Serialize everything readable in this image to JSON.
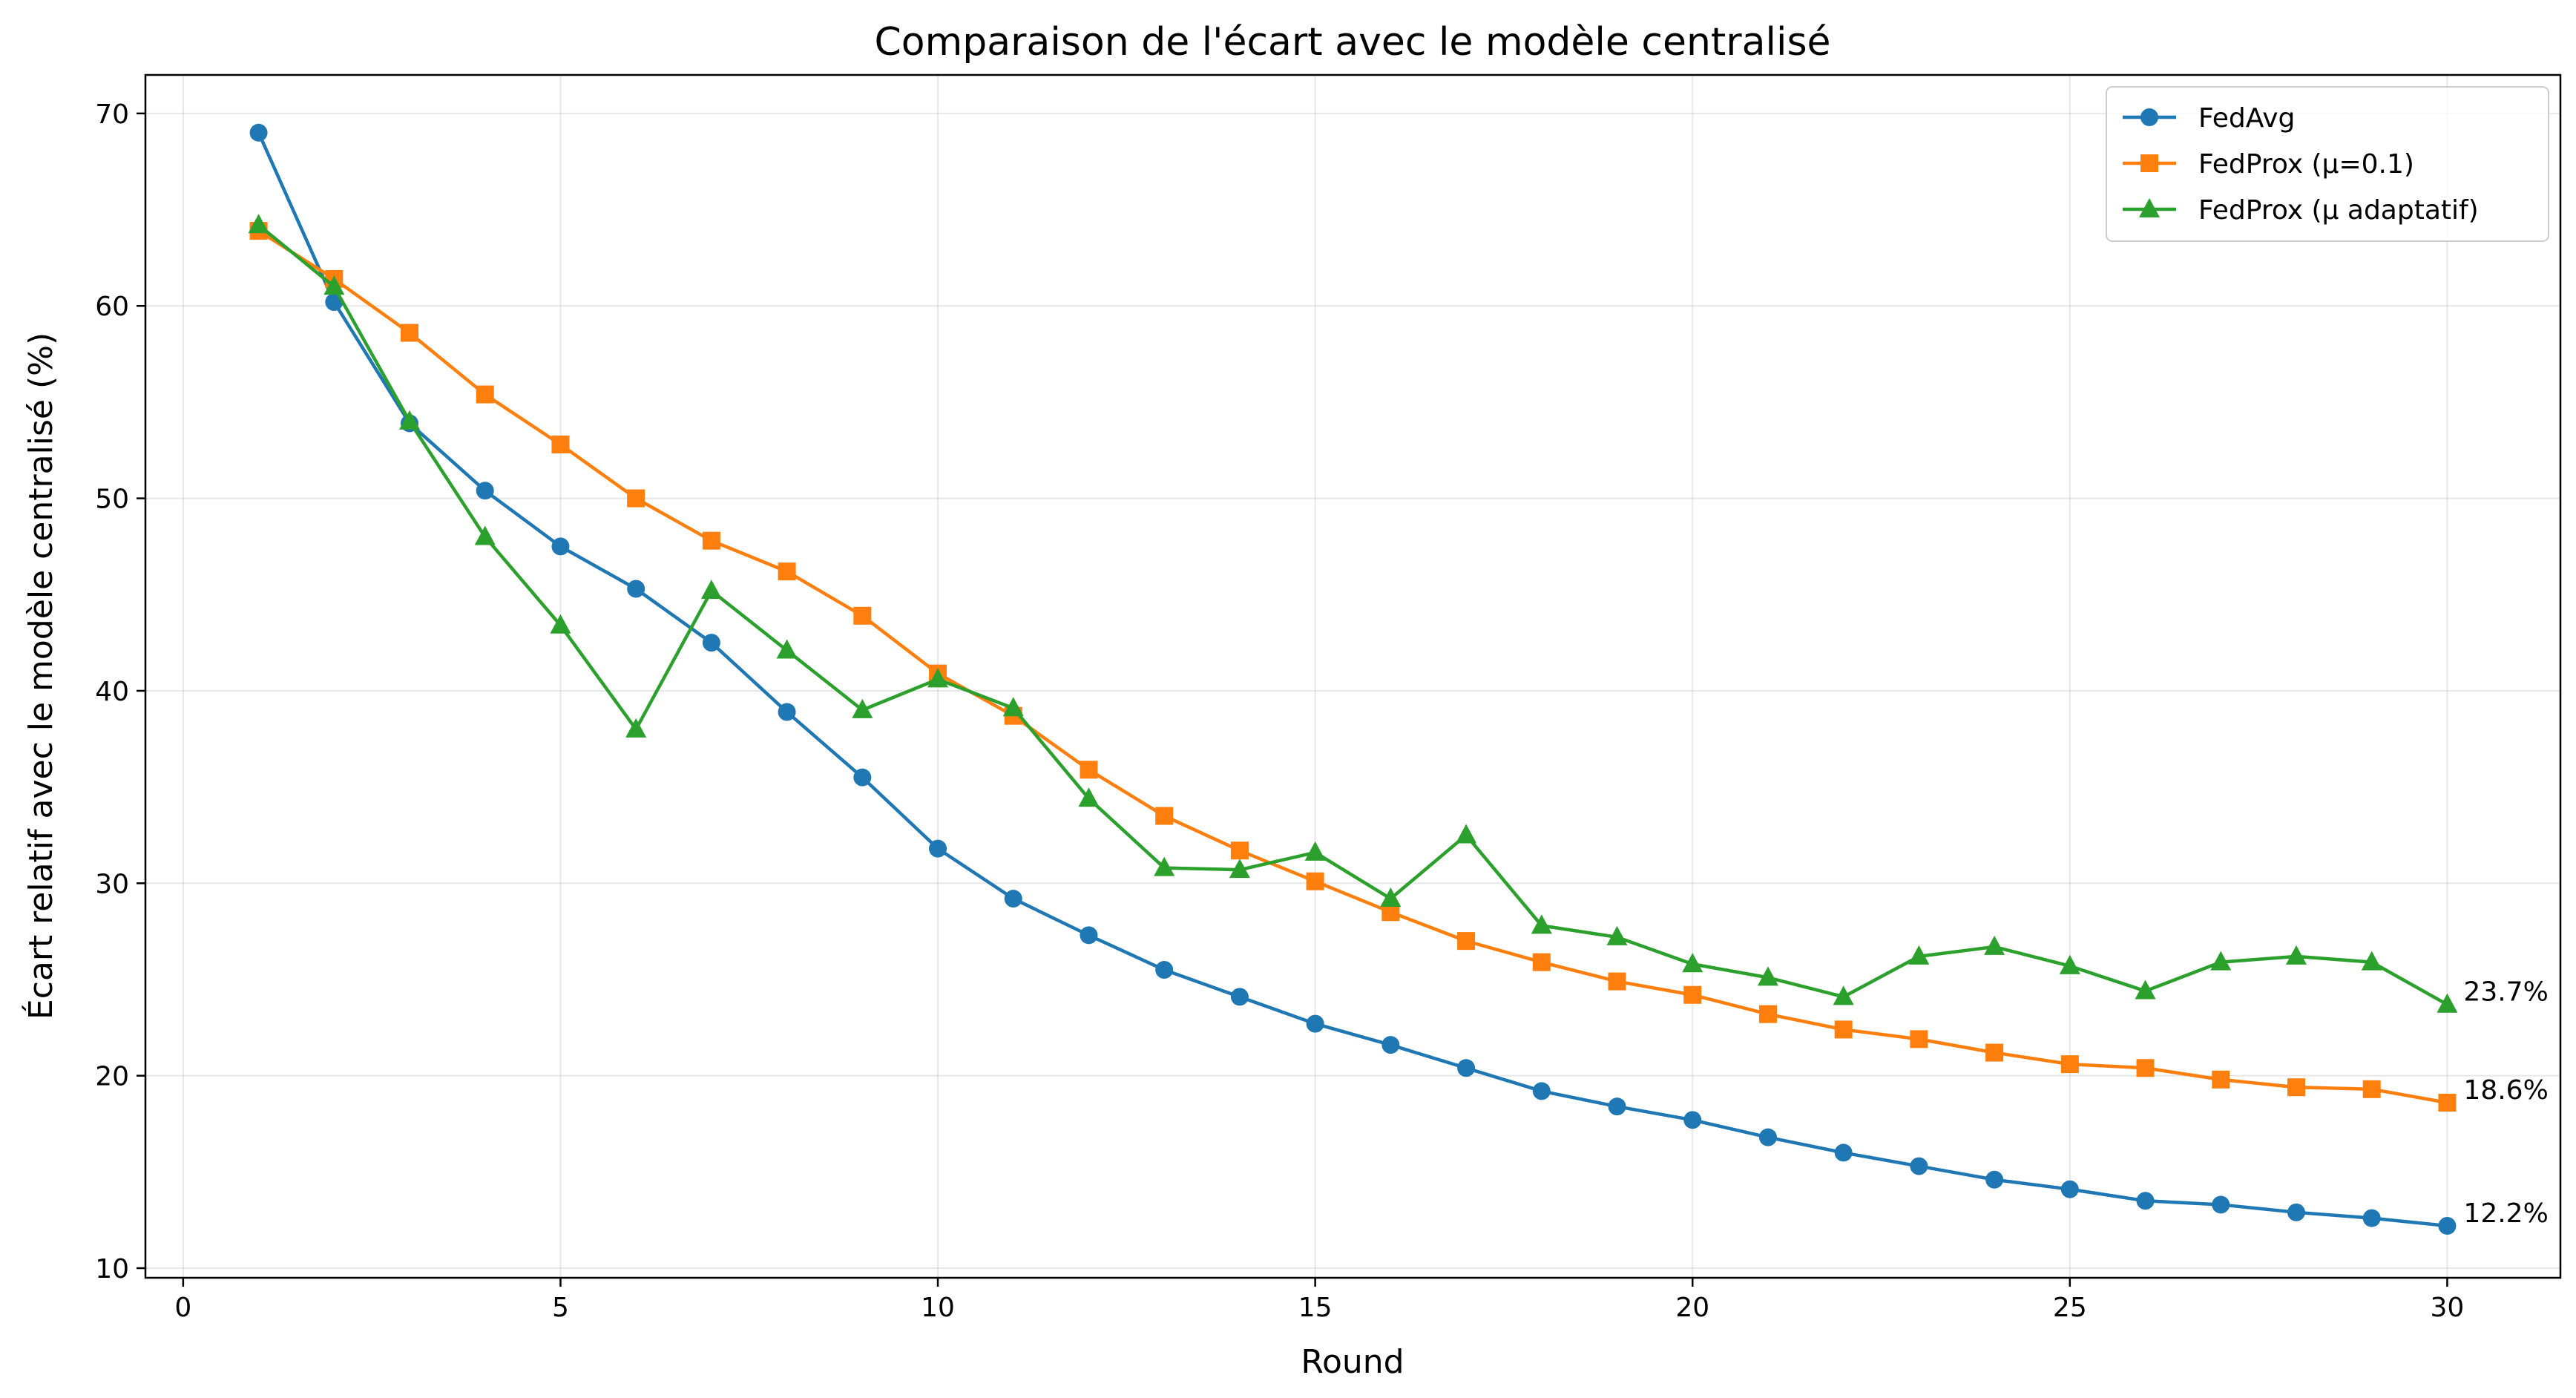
{
  "chart_data": {
    "type": "line",
    "title": "Comparaison de l'écart avec le modèle centralisé",
    "xlabel": "Round",
    "ylabel": "Écart relatif avec le modèle centralisé (%)",
    "xlim": [
      -0.5,
      31.5
    ],
    "ylim": [
      9.5,
      72
    ],
    "xticks": [
      0,
      5,
      10,
      15,
      20,
      25,
      30
    ],
    "yticks": [
      10,
      20,
      30,
      40,
      50,
      60,
      70
    ],
    "grid": true,
    "legend_position": "top-right",
    "x": [
      1,
      2,
      3,
      4,
      5,
      6,
      7,
      8,
      9,
      10,
      11,
      12,
      13,
      14,
      15,
      16,
      17,
      18,
      19,
      20,
      21,
      22,
      23,
      24,
      25,
      26,
      27,
      28,
      29,
      30
    ],
    "series": [
      {
        "name": "FedAvg",
        "color": "#1f77b4",
        "marker": "circle",
        "values": [
          69.0,
          60.2,
          53.9,
          50.4,
          47.5,
          45.3,
          42.5,
          38.9,
          35.5,
          31.8,
          29.2,
          27.3,
          25.5,
          24.1,
          22.7,
          21.6,
          20.4,
          19.2,
          18.4,
          17.7,
          16.8,
          16.0,
          15.3,
          14.6,
          14.1,
          13.5,
          13.3,
          12.9,
          12.6,
          12.2
        ],
        "end_label": "12.2%"
      },
      {
        "name": "FedProx (μ=0.1)",
        "color": "#ff7f0e",
        "marker": "square",
        "values": [
          63.9,
          61.4,
          58.6,
          55.4,
          52.8,
          50.0,
          47.8,
          46.2,
          43.9,
          40.9,
          38.7,
          35.9,
          33.5,
          31.7,
          30.1,
          28.5,
          27.0,
          25.9,
          24.9,
          24.2,
          23.2,
          22.4,
          21.9,
          21.2,
          20.6,
          20.4,
          19.8,
          19.4,
          19.3,
          18.6
        ],
        "end_label": "18.6%"
      },
      {
        "name": "FedProx (μ adaptatif)",
        "color": "#2ca02c",
        "marker": "triangle",
        "values": [
          64.2,
          61.0,
          54.0,
          48.0,
          43.4,
          38.0,
          45.2,
          42.1,
          39.0,
          40.6,
          39.1,
          34.4,
          30.8,
          30.7,
          31.6,
          29.2,
          32.5,
          27.8,
          27.2,
          25.8,
          25.1,
          24.1,
          26.2,
          26.7,
          25.7,
          24.4,
          25.9,
          26.2,
          25.9,
          23.7
        ],
        "end_label": "23.7%"
      }
    ]
  }
}
